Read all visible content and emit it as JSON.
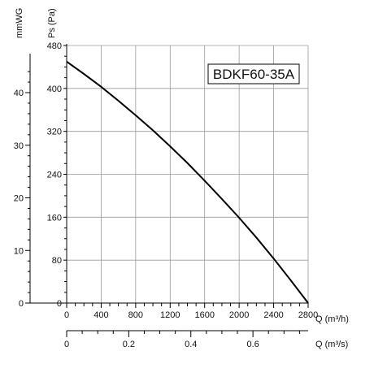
{
  "chart_data": {
    "type": "line",
    "model_label": "BDKF60-35A",
    "x_q_label": "Q (m³/h)",
    "x_q2_label": "Q (m³/s)",
    "y_ps_label": "Ps (Pa)",
    "y_mmwg_label": "mmWG",
    "xlim": [
      0,
      2800
    ],
    "ylim": [
      0,
      480
    ],
    "x_ticks": [
      0,
      400,
      800,
      1200,
      1600,
      2000,
      2400,
      2800
    ],
    "y_ticks": [
      0,
      80,
      160,
      240,
      320,
      400,
      480
    ],
    "x2_ticks": [
      "0",
      "0.2",
      "0.4",
      "0.6"
    ],
    "x2_values": [
      0,
      0.2,
      0.4,
      0.6
    ],
    "x2_lim": [
      0,
      0.7778
    ],
    "mmwg_ticks": [
      0,
      10,
      20,
      30,
      40
    ],
    "mmwg_lim": [
      0,
      48.96
    ],
    "grid": true,
    "series": [
      {
        "x": [
          0,
          200,
          400,
          600,
          800,
          1000,
          1200,
          1400,
          1600,
          1800,
          2000,
          2200,
          2400,
          2600,
          2800
        ],
        "y": [
          450,
          427,
          403,
          377,
          350,
          322,
          292,
          261,
          228,
          194,
          159,
          122,
          83,
          42,
          0
        ]
      }
    ]
  }
}
